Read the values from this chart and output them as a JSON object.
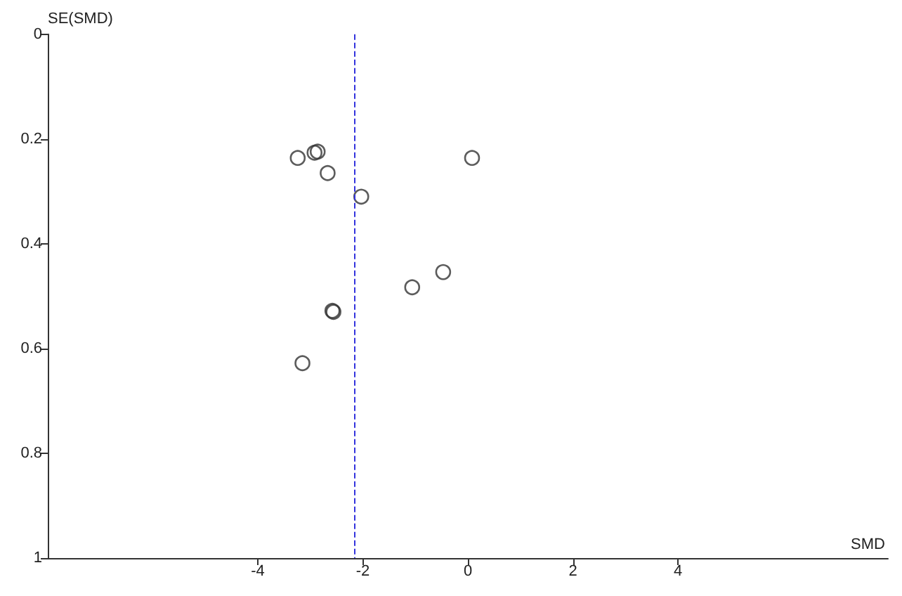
{
  "chart_data": {
    "type": "scatter",
    "xlabel": "SMD",
    "ylabel": "SE(SMD)",
    "x": [
      -3.24,
      -2.92,
      -2.86,
      -2.67,
      -2.03,
      0.08,
      -0.47,
      -1.06,
      -2.58,
      -2.56,
      -3.15
    ],
    "values": [
      0.236,
      0.226,
      0.224,
      0.265,
      0.31,
      0.236,
      0.454,
      0.483,
      0.528,
      0.53,
      0.628
    ],
    "color": "#333333",
    "marker": "circle",
    "xlim": [
      -8,
      8
    ],
    "xticks": [
      -4,
      -2,
      0,
      2,
      4
    ],
    "ylim": [
      1,
      0
    ],
    "yticks": [
      0,
      0.2,
      0.4,
      0.6,
      0.8,
      1
    ],
    "ref_lines": [
      {
        "axis": "x",
        "value": -2.15,
        "color": "#3333dd",
        "line_style": "dashed"
      }
    ],
    "grid": false
  }
}
